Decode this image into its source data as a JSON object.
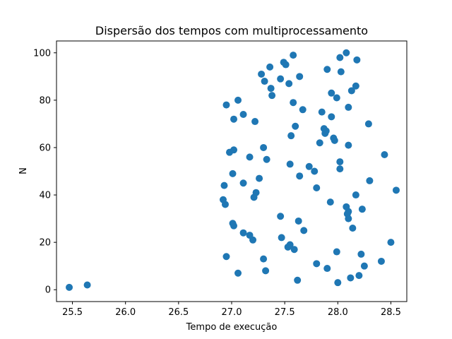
{
  "chart_data": {
    "type": "scatter",
    "title": "Dispersão dos tempos com multiprocessamento",
    "xlabel": "Tempo de execução",
    "ylabel": "N",
    "xlim": [
      25.35,
      28.65
    ],
    "ylim": [
      -5,
      105
    ],
    "xticks": [
      25.5,
      26.0,
      26.5,
      27.0,
      27.5,
      28.0,
      28.5
    ],
    "yticks": [
      0,
      20,
      40,
      60,
      80,
      100
    ],
    "grid": false,
    "legend": "none",
    "marker_color": "#1f77b4",
    "points": [
      {
        "x": 25.47,
        "y": 1
      },
      {
        "x": 25.64,
        "y": 2
      },
      {
        "x": 28.0,
        "y": 3
      },
      {
        "x": 27.62,
        "y": 4
      },
      {
        "x": 28.12,
        "y": 5
      },
      {
        "x": 28.2,
        "y": 6
      },
      {
        "x": 27.06,
        "y": 7
      },
      {
        "x": 27.32,
        "y": 8
      },
      {
        "x": 27.9,
        "y": 9
      },
      {
        "x": 28.25,
        "y": 10
      },
      {
        "x": 27.8,
        "y": 11
      },
      {
        "x": 28.41,
        "y": 12
      },
      {
        "x": 27.3,
        "y": 13
      },
      {
        "x": 26.95,
        "y": 14
      },
      {
        "x": 28.22,
        "y": 15
      },
      {
        "x": 27.99,
        "y": 16
      },
      {
        "x": 27.59,
        "y": 17
      },
      {
        "x": 27.53,
        "y": 18
      },
      {
        "x": 27.55,
        "y": 19
      },
      {
        "x": 28.5,
        "y": 20
      },
      {
        "x": 27.2,
        "y": 21
      },
      {
        "x": 27.47,
        "y": 22
      },
      {
        "x": 27.17,
        "y": 23
      },
      {
        "x": 27.11,
        "y": 24
      },
      {
        "x": 27.68,
        "y": 25
      },
      {
        "x": 28.14,
        "y": 26
      },
      {
        "x": 27.02,
        "y": 27
      },
      {
        "x": 27.01,
        "y": 28
      },
      {
        "x": 27.63,
        "y": 29
      },
      {
        "x": 28.1,
        "y": 30
      },
      {
        "x": 27.46,
        "y": 31
      },
      {
        "x": 28.09,
        "y": 32
      },
      {
        "x": 28.1,
        "y": 33
      },
      {
        "x": 28.23,
        "y": 34
      },
      {
        "x": 28.08,
        "y": 35
      },
      {
        "x": 26.94,
        "y": 36
      },
      {
        "x": 27.93,
        "y": 37
      },
      {
        "x": 26.92,
        "y": 38
      },
      {
        "x": 27.21,
        "y": 39
      },
      {
        "x": 28.17,
        "y": 40
      },
      {
        "x": 27.23,
        "y": 41
      },
      {
        "x": 28.55,
        "y": 42
      },
      {
        "x": 27.8,
        "y": 43
      },
      {
        "x": 26.93,
        "y": 44
      },
      {
        "x": 27.11,
        "y": 45
      },
      {
        "x": 28.3,
        "y": 46
      },
      {
        "x": 27.26,
        "y": 47
      },
      {
        "x": 27.64,
        "y": 48
      },
      {
        "x": 27.01,
        "y": 49
      },
      {
        "x": 27.78,
        "y": 50
      },
      {
        "x": 28.02,
        "y": 51
      },
      {
        "x": 27.73,
        "y": 52
      },
      {
        "x": 27.55,
        "y": 53
      },
      {
        "x": 28.02,
        "y": 54
      },
      {
        "x": 27.33,
        "y": 55
      },
      {
        "x": 27.17,
        "y": 56
      },
      {
        "x": 28.44,
        "y": 57
      },
      {
        "x": 26.98,
        "y": 58
      },
      {
        "x": 27.02,
        "y": 59
      },
      {
        "x": 27.3,
        "y": 60
      },
      {
        "x": 28.1,
        "y": 61
      },
      {
        "x": 27.83,
        "y": 62
      },
      {
        "x": 27.97,
        "y": 63
      },
      {
        "x": 27.96,
        "y": 64
      },
      {
        "x": 27.56,
        "y": 65
      },
      {
        "x": 27.88,
        "y": 66
      },
      {
        "x": 27.89,
        "y": 67
      },
      {
        "x": 27.87,
        "y": 68
      },
      {
        "x": 27.6,
        "y": 69
      },
      {
        "x": 28.29,
        "y": 70
      },
      {
        "x": 27.22,
        "y": 71
      },
      {
        "x": 27.02,
        "y": 72
      },
      {
        "x": 27.94,
        "y": 73
      },
      {
        "x": 27.11,
        "y": 74
      },
      {
        "x": 27.85,
        "y": 75
      },
      {
        "x": 27.67,
        "y": 76
      },
      {
        "x": 28.1,
        "y": 77
      },
      {
        "x": 26.95,
        "y": 78
      },
      {
        "x": 27.58,
        "y": 79
      },
      {
        "x": 27.06,
        "y": 80
      },
      {
        "x": 27.99,
        "y": 81
      },
      {
        "x": 27.38,
        "y": 82
      },
      {
        "x": 27.94,
        "y": 83
      },
      {
        "x": 28.13,
        "y": 84
      },
      {
        "x": 27.37,
        "y": 85
      },
      {
        "x": 28.17,
        "y": 86
      },
      {
        "x": 27.54,
        "y": 87
      },
      {
        "x": 27.31,
        "y": 88
      },
      {
        "x": 27.46,
        "y": 89
      },
      {
        "x": 27.64,
        "y": 90
      },
      {
        "x": 27.28,
        "y": 91
      },
      {
        "x": 28.03,
        "y": 92
      },
      {
        "x": 27.9,
        "y": 93
      },
      {
        "x": 27.36,
        "y": 94
      },
      {
        "x": 27.51,
        "y": 95
      },
      {
        "x": 27.49,
        "y": 96
      },
      {
        "x": 28.18,
        "y": 97
      },
      {
        "x": 28.02,
        "y": 98
      },
      {
        "x": 27.58,
        "y": 99
      },
      {
        "x": 28.08,
        "y": 100
      }
    ]
  }
}
